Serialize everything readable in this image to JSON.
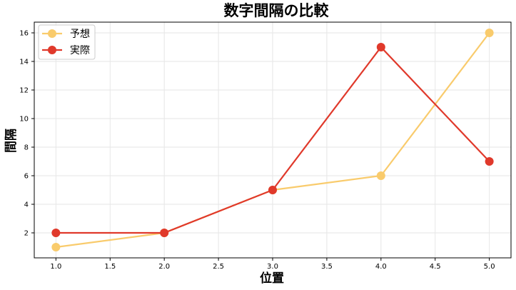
{
  "chart_data": {
    "type": "line",
    "title": "数字間隔の比較",
    "xlabel": "位置",
    "ylabel": "間隔",
    "x": [
      1,
      2,
      3,
      4,
      5
    ],
    "xlim": [
      0.8,
      5.2
    ],
    "ylim": [
      0.25,
      16.75
    ],
    "xticks": [
      "1.0",
      "1.5",
      "2.0",
      "2.5",
      "3.0",
      "3.5",
      "4.0",
      "4.5",
      "5.0"
    ],
    "yticks": [
      "2",
      "4",
      "6",
      "8",
      "10",
      "12",
      "14",
      "16"
    ],
    "grid": true,
    "legend_position": "top-left",
    "series": [
      {
        "name": "予想",
        "color": "#F9CB6C",
        "values": [
          1,
          2,
          5,
          6,
          16
        ]
      },
      {
        "name": "実際",
        "color": "#E0392B",
        "values": [
          2,
          2,
          5,
          15,
          7
        ]
      }
    ]
  }
}
